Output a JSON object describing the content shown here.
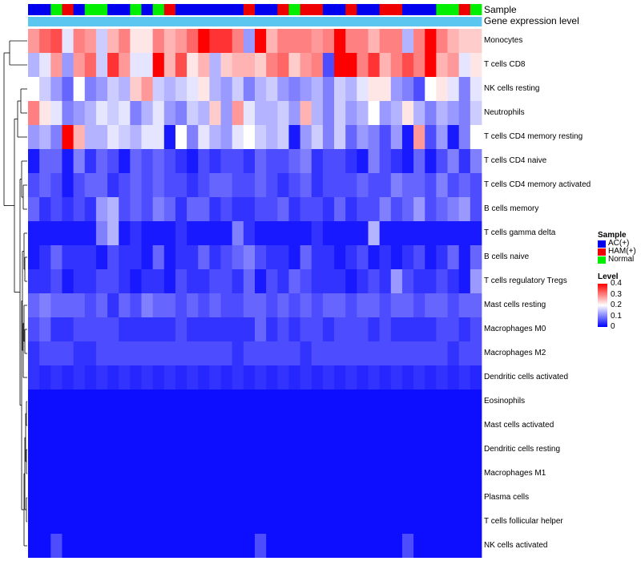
{
  "chart_data": {
    "type": "heatmap",
    "annotation_labels": [
      "Sample",
      "Gene expression level"
    ],
    "gene_expression_color": "#5bc6f0",
    "sample_groups": [
      "AC(+)",
      "AC(+)",
      "Normal",
      "HAM(+)",
      "AC(+)",
      "Normal",
      "Normal",
      "AC(+)",
      "AC(+)",
      "Normal",
      "AC(+)",
      "Normal",
      "HAM(+)",
      "AC(+)",
      "AC(+)",
      "AC(+)",
      "AC(+)",
      "AC(+)",
      "AC(+)",
      "HAM(+)",
      "AC(+)",
      "AC(+)",
      "HAM(+)",
      "Normal",
      "HAM(+)",
      "HAM(+)",
      "AC(+)",
      "AC(+)",
      "HAM(+)",
      "AC(+)",
      "AC(+)",
      "HAM(+)",
      "HAM(+)",
      "AC(+)",
      "AC(+)",
      "AC(+)",
      "Normal",
      "Normal",
      "HAM(+)",
      "Normal"
    ],
    "rows": [
      "Monocytes",
      "T cells CD8",
      "NK cells resting",
      "Neutrophils",
      "T cells CD4 memory resting",
      "T cells CD4 naive",
      "T cells CD4 memory activated",
      "B cells memory",
      "T cells gamma delta",
      "B cells naive",
      "T cells regulatory  Tregs",
      "Mast cells resting",
      "Macrophages M0",
      "Macrophages M2",
      "Dendritic cells activated",
      "Eosinophils",
      "Mast cells activated",
      "Dendritic cells resting",
      "Macrophages M1",
      "Plasma cells",
      "T cells follicular helper",
      "NK cells activated"
    ],
    "values": [
      [
        0.28,
        0.32,
        0.34,
        0.18,
        0.3,
        0.28,
        0.16,
        0.26,
        0.3,
        0.22,
        0.22,
        0.3,
        0.26,
        0.28,
        0.32,
        0.4,
        0.36,
        0.36,
        0.3,
        0.12,
        0.4,
        0.26,
        0.3,
        0.3,
        0.3,
        0.28,
        0.3,
        0.4,
        0.3,
        0.3,
        0.26,
        0.3,
        0.3,
        0.14,
        0.3,
        0.4,
        0.3,
        0.26,
        0.24,
        0.24
      ],
      [
        0.14,
        0.18,
        0.28,
        0.12,
        0.28,
        0.32,
        0.16,
        0.36,
        0.28,
        0.18,
        0.18,
        0.4,
        0.26,
        0.34,
        0.22,
        0.26,
        0.14,
        0.24,
        0.26,
        0.26,
        0.24,
        0.3,
        0.32,
        0.24,
        0.28,
        0.3,
        0.06,
        0.4,
        0.4,
        0.3,
        0.36,
        0.26,
        0.3,
        0.34,
        0.3,
        0.4,
        0.26,
        0.28,
        0.18,
        0.22
      ],
      [
        0.2,
        0.16,
        0.12,
        0.08,
        0.2,
        0.1,
        0.12,
        0.16,
        0.14,
        0.24,
        0.28,
        0.16,
        0.14,
        0.16,
        0.18,
        0.22,
        0.14,
        0.12,
        0.16,
        0.1,
        0.14,
        0.16,
        0.12,
        0.1,
        0.12,
        0.14,
        0.1,
        0.16,
        0.14,
        0.18,
        0.22,
        0.22,
        0.12,
        0.1,
        0.06,
        0.2,
        0.22,
        0.18,
        0.1,
        0.18
      ],
      [
        0.3,
        0.22,
        0.18,
        0.1,
        0.12,
        0.14,
        0.18,
        0.16,
        0.18,
        0.1,
        0.14,
        0.18,
        0.12,
        0.1,
        0.16,
        0.14,
        0.24,
        0.12,
        0.28,
        0.18,
        0.14,
        0.14,
        0.16,
        0.12,
        0.26,
        0.14,
        0.1,
        0.16,
        0.12,
        0.14,
        0.2,
        0.12,
        0.14,
        0.22,
        0.14,
        0.1,
        0.14,
        0.12,
        0.1,
        0.16
      ],
      [
        0.12,
        0.14,
        0.1,
        0.4,
        0.26,
        0.14,
        0.14,
        0.18,
        0.16,
        0.14,
        0.18,
        0.18,
        0.02,
        0.2,
        0.1,
        0.18,
        0.14,
        0.12,
        0.18,
        0.2,
        0.16,
        0.14,
        0.16,
        0.02,
        0.12,
        0.16,
        0.1,
        0.16,
        0.08,
        0.12,
        0.1,
        0.06,
        0.12,
        0.02,
        0.28,
        0.06,
        0.12,
        0.02,
        0.1,
        0.2
      ],
      [
        0.02,
        0.08,
        0.08,
        0.02,
        0.1,
        0.04,
        0.08,
        0.06,
        0.02,
        0.08,
        0.06,
        0.08,
        0.06,
        0.04,
        0.02,
        0.06,
        0.04,
        0.06,
        0.06,
        0.04,
        0.08,
        0.06,
        0.06,
        0.08,
        0.1,
        0.04,
        0.06,
        0.06,
        0.04,
        0.02,
        0.1,
        0.06,
        0.04,
        0.02,
        0.08,
        0.02,
        0.06,
        0.1,
        0.04,
        0.1
      ],
      [
        0.06,
        0.08,
        0.06,
        0.02,
        0.06,
        0.08,
        0.08,
        0.04,
        0.06,
        0.08,
        0.06,
        0.08,
        0.06,
        0.06,
        0.04,
        0.06,
        0.08,
        0.08,
        0.06,
        0.06,
        0.08,
        0.06,
        0.04,
        0.06,
        0.08,
        0.04,
        0.06,
        0.06,
        0.06,
        0.08,
        0.06,
        0.06,
        0.1,
        0.08,
        0.08,
        0.06,
        0.1,
        0.06,
        0.08,
        0.06
      ],
      [
        0.08,
        0.04,
        0.06,
        0.04,
        0.06,
        0.04,
        0.12,
        0.14,
        0.06,
        0.08,
        0.06,
        0.1,
        0.08,
        0.04,
        0.08,
        0.08,
        0.04,
        0.06,
        0.04,
        0.04,
        0.06,
        0.06,
        0.08,
        0.04,
        0.06,
        0.06,
        0.04,
        0.08,
        0.04,
        0.06,
        0.06,
        0.1,
        0.06,
        0.08,
        0.12,
        0.06,
        0.08,
        0.1,
        0.12,
        0.06
      ],
      [
        0.02,
        0.02,
        0.02,
        0.02,
        0.02,
        0.02,
        0.1,
        0.14,
        0.02,
        0.04,
        0.02,
        0.02,
        0.02,
        0.04,
        0.02,
        0.02,
        0.02,
        0.02,
        0.1,
        0.04,
        0.02,
        0.02,
        0.02,
        0.02,
        0.02,
        0.04,
        0.02,
        0.02,
        0.02,
        0.02,
        0.14,
        0.02,
        0.02,
        0.02,
        0.02,
        0.02,
        0.02,
        0.02,
        0.02,
        0.02
      ],
      [
        0.02,
        0.04,
        0.08,
        0.04,
        0.04,
        0.04,
        0.02,
        0.06,
        0.04,
        0.04,
        0.02,
        0.08,
        0.02,
        0.04,
        0.04,
        0.08,
        0.04,
        0.06,
        0.08,
        0.1,
        0.06,
        0.04,
        0.04,
        0.02,
        0.08,
        0.04,
        0.04,
        0.02,
        0.04,
        0.06,
        0.02,
        0.04,
        0.02,
        0.04,
        0.06,
        0.02,
        0.04,
        0.08,
        0.02,
        0.08
      ],
      [
        0.04,
        0.04,
        0.06,
        0.02,
        0.04,
        0.04,
        0.06,
        0.06,
        0.04,
        0.02,
        0.04,
        0.04,
        0.02,
        0.06,
        0.04,
        0.04,
        0.06,
        0.06,
        0.04,
        0.08,
        0.02,
        0.06,
        0.04,
        0.08,
        0.06,
        0.04,
        0.04,
        0.04,
        0.02,
        0.04,
        0.06,
        0.04,
        0.12,
        0.06,
        0.04,
        0.04,
        0.06,
        0.04,
        0.02,
        0.12
      ],
      [
        0.08,
        0.1,
        0.08,
        0.08,
        0.08,
        0.06,
        0.08,
        0.04,
        0.08,
        0.06,
        0.1,
        0.08,
        0.08,
        0.06,
        0.08,
        0.06,
        0.08,
        0.06,
        0.06,
        0.08,
        0.08,
        0.06,
        0.08,
        0.06,
        0.08,
        0.06,
        0.08,
        0.08,
        0.06,
        0.08,
        0.08,
        0.06,
        0.08,
        0.08,
        0.06,
        0.08,
        0.08,
        0.06,
        0.08,
        0.08
      ],
      [
        0.06,
        0.08,
        0.04,
        0.04,
        0.06,
        0.06,
        0.06,
        0.06,
        0.04,
        0.04,
        0.04,
        0.04,
        0.04,
        0.06,
        0.04,
        0.04,
        0.04,
        0.04,
        0.04,
        0.04,
        0.08,
        0.04,
        0.06,
        0.04,
        0.06,
        0.06,
        0.04,
        0.06,
        0.06,
        0.06,
        0.04,
        0.06,
        0.04,
        0.04,
        0.04,
        0.04,
        0.06,
        0.06,
        0.04,
        0.06
      ],
      [
        0.04,
        0.06,
        0.06,
        0.06,
        0.04,
        0.04,
        0.06,
        0.06,
        0.06,
        0.06,
        0.06,
        0.06,
        0.06,
        0.06,
        0.06,
        0.06,
        0.06,
        0.06,
        0.04,
        0.06,
        0.06,
        0.06,
        0.06,
        0.06,
        0.04,
        0.06,
        0.06,
        0.06,
        0.06,
        0.06,
        0.06,
        0.06,
        0.06,
        0.06,
        0.06,
        0.06,
        0.06,
        0.04,
        0.06,
        0.06
      ],
      [
        0.04,
        0.03,
        0.04,
        0.03,
        0.04,
        0.03,
        0.04,
        0.03,
        0.04,
        0.03,
        0.04,
        0.03,
        0.04,
        0.03,
        0.04,
        0.03,
        0.04,
        0.03,
        0.04,
        0.03,
        0.04,
        0.03,
        0.04,
        0.03,
        0.04,
        0.03,
        0.04,
        0.03,
        0.04,
        0.03,
        0.04,
        0.03,
        0.04,
        0.03,
        0.04,
        0.03,
        0.04,
        0.03,
        0.04,
        0.03
      ],
      [
        0.01,
        0.01,
        0.01,
        0.01,
        0.01,
        0.01,
        0.01,
        0.01,
        0.01,
        0.01,
        0.01,
        0.01,
        0.01,
        0.01,
        0.01,
        0.01,
        0.01,
        0.01,
        0.01,
        0.01,
        0.01,
        0.01,
        0.01,
        0.01,
        0.01,
        0.01,
        0.01,
        0.01,
        0.01,
        0.01,
        0.01,
        0.01,
        0.01,
        0.01,
        0.01,
        0.01,
        0.01,
        0.01,
        0.01,
        0.01
      ],
      [
        0.01,
        0.01,
        0.01,
        0.01,
        0.01,
        0.01,
        0.01,
        0.01,
        0.01,
        0.01,
        0.01,
        0.01,
        0.01,
        0.01,
        0.01,
        0.01,
        0.01,
        0.01,
        0.01,
        0.01,
        0.01,
        0.01,
        0.01,
        0.01,
        0.01,
        0.01,
        0.01,
        0.01,
        0.01,
        0.01,
        0.01,
        0.01,
        0.01,
        0.01,
        0.01,
        0.01,
        0.01,
        0.01,
        0.01,
        0.01
      ],
      [
        0.01,
        0.01,
        0.01,
        0.01,
        0.01,
        0.01,
        0.01,
        0.01,
        0.01,
        0.01,
        0.01,
        0.01,
        0.01,
        0.01,
        0.01,
        0.01,
        0.01,
        0.01,
        0.01,
        0.01,
        0.01,
        0.01,
        0.01,
        0.01,
        0.01,
        0.01,
        0.01,
        0.01,
        0.01,
        0.01,
        0.01,
        0.01,
        0.01,
        0.01,
        0.01,
        0.01,
        0.01,
        0.01,
        0.01,
        0.01
      ],
      [
        0.01,
        0.01,
        0.01,
        0.01,
        0.01,
        0.01,
        0.01,
        0.01,
        0.01,
        0.01,
        0.01,
        0.01,
        0.01,
        0.01,
        0.01,
        0.01,
        0.01,
        0.01,
        0.01,
        0.01,
        0.01,
        0.01,
        0.01,
        0.01,
        0.01,
        0.01,
        0.01,
        0.01,
        0.01,
        0.01,
        0.01,
        0.01,
        0.01,
        0.01,
        0.01,
        0.01,
        0.01,
        0.01,
        0.01,
        0.01
      ],
      [
        0.01,
        0.01,
        0.01,
        0.01,
        0.01,
        0.01,
        0.01,
        0.01,
        0.01,
        0.01,
        0.01,
        0.01,
        0.01,
        0.01,
        0.01,
        0.01,
        0.01,
        0.01,
        0.01,
        0.01,
        0.01,
        0.01,
        0.01,
        0.01,
        0.01,
        0.01,
        0.01,
        0.01,
        0.01,
        0.01,
        0.01,
        0.01,
        0.01,
        0.01,
        0.01,
        0.01,
        0.01,
        0.01,
        0.01,
        0.01
      ],
      [
        0.01,
        0.01,
        0.01,
        0.01,
        0.01,
        0.01,
        0.01,
        0.01,
        0.01,
        0.01,
        0.01,
        0.01,
        0.01,
        0.01,
        0.01,
        0.01,
        0.01,
        0.01,
        0.01,
        0.01,
        0.01,
        0.01,
        0.01,
        0.01,
        0.01,
        0.01,
        0.01,
        0.01,
        0.01,
        0.01,
        0.01,
        0.01,
        0.01,
        0.01,
        0.01,
        0.01,
        0.01,
        0.01,
        0.01,
        0.01
      ],
      [
        0.01,
        0.01,
        0.06,
        0.01,
        0.01,
        0.01,
        0.01,
        0.01,
        0.01,
        0.01,
        0.01,
        0.01,
        0.01,
        0.01,
        0.01,
        0.01,
        0.01,
        0.01,
        0.01,
        0.01,
        0.06,
        0.01,
        0.01,
        0.01,
        0.01,
        0.01,
        0.01,
        0.01,
        0.01,
        0.01,
        0.01,
        0.01,
        0.01,
        0.06,
        0.01,
        0.01,
        0.01,
        0.01,
        0.01,
        0.01
      ]
    ],
    "legend": {
      "sample_title": "Sample",
      "sample_items": [
        {
          "label": "AC(+)",
          "color": "#0000ee"
        },
        {
          "label": "HAM(+)",
          "color": "#ee0000"
        },
        {
          "label": "Normal",
          "color": "#00ee00"
        }
      ],
      "level_title": "Level",
      "level_ticks": [
        "0.4",
        "0.3",
        "0.2",
        "0.1",
        "0"
      ],
      "level_range": [
        0,
        0.4
      ]
    }
  }
}
